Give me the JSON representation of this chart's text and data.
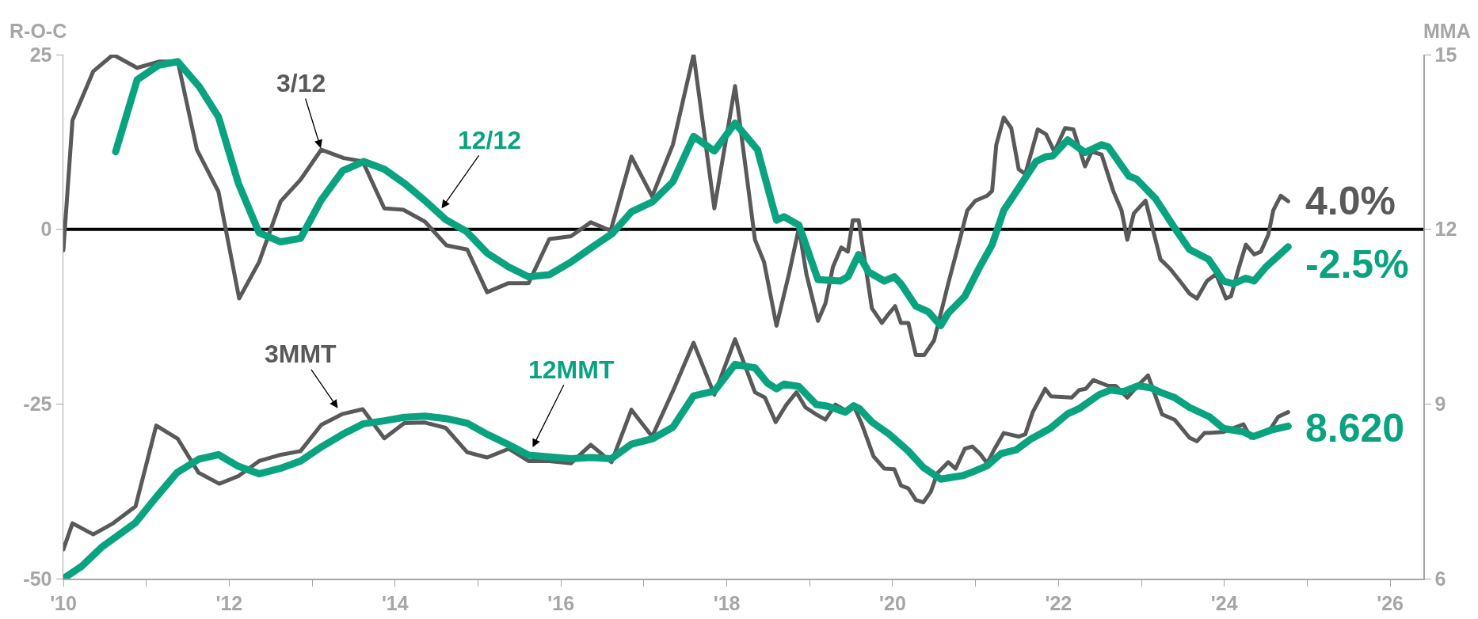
{
  "chart_data": {
    "type": "line",
    "ylabel": "R-O-C",
    "y2label": "MMA",
    "xlim": [
      2010,
      2026.4
    ],
    "xticks": [
      {
        "value": 2010,
        "label": "'10"
      },
      {
        "value": 2011,
        "label": null
      },
      {
        "value": 2012,
        "label": "'12"
      },
      {
        "value": 2013,
        "label": null
      },
      {
        "value": 2014,
        "label": "'14"
      },
      {
        "value": 2015,
        "label": null
      },
      {
        "value": 2016,
        "label": "'16"
      },
      {
        "value": 2017,
        "label": null
      },
      {
        "value": 2018,
        "label": "'18"
      },
      {
        "value": 2019,
        "label": null
      },
      {
        "value": 2020,
        "label": "'20"
      },
      {
        "value": 2021,
        "label": null
      },
      {
        "value": 2022,
        "label": "'22"
      },
      {
        "value": 2023,
        "label": null
      },
      {
        "value": 2024,
        "label": "'24"
      },
      {
        "value": 2025,
        "label": null
      },
      {
        "value": 2026,
        "label": "'26"
      }
    ],
    "ylim": [
      -50,
      25
    ],
    "yticks": [
      -50,
      -25,
      0,
      25
    ],
    "y2lim": [
      6,
      15
    ],
    "y2ticks": [
      6,
      9,
      12,
      15
    ],
    "grid": false,
    "marker": "none",
    "line_style": "solid",
    "ref_lines": [
      {
        "axis": "y",
        "value": 0,
        "label": null,
        "color": "#000000"
      }
    ],
    "series": [
      {
        "color": "#595959",
        "axis": "y",
        "x": [
          2010.0,
          2010.11,
          2010.36,
          2010.6,
          2010.89,
          2011.15,
          2011.38,
          2011.61,
          2011.87,
          2012.12,
          2012.36,
          2012.62,
          2012.86,
          2013.11,
          2013.38,
          2013.61,
          2013.87,
          2014.1,
          2014.36,
          2014.62,
          2014.87,
          2015.11,
          2015.37,
          2015.61,
          2015.86,
          2016.12,
          2016.36,
          2016.6,
          2016.85,
          2017.1,
          2017.35,
          2017.6,
          2017.85,
          2018.1,
          2018.34,
          2018.45,
          2018.6,
          2018.75,
          2018.87,
          2018.96,
          2019.1,
          2019.19,
          2019.28,
          2019.38,
          2019.46,
          2019.52,
          2019.59,
          2019.75,
          2019.87,
          2019.96,
          2020.03,
          2020.1,
          2020.19,
          2020.28,
          2020.38,
          2020.5,
          2020.67,
          2020.81,
          2020.9,
          2021.0,
          2021.14,
          2021.2,
          2021.25,
          2021.34,
          2021.43,
          2021.52,
          2021.6,
          2021.75,
          2021.85,
          2021.95,
          2022.08,
          2022.18,
          2022.32,
          2022.4,
          2022.52,
          2022.66,
          2022.76,
          2022.83,
          2022.91,
          2023.05,
          2023.23,
          2023.35,
          2023.49,
          2023.58,
          2023.67,
          2023.79,
          2023.9,
          2024.02,
          2024.08,
          2024.17,
          2024.26,
          2024.36,
          2024.44,
          2024.53,
          2024.59,
          2024.68,
          2024.77
        ],
        "values": [
          -3,
          15.6,
          22.6,
          25,
          23.1,
          24,
          24,
          11.4,
          5.4,
          -9.9,
          -4.7,
          4,
          7.1,
          11.4,
          10.2,
          9.7,
          3,
          2.8,
          1.1,
          -2.3,
          -2.9,
          -9,
          -7.7,
          -7.7,
          -1.4,
          -1,
          1,
          -0.2,
          10.4,
          4.7,
          12.1,
          25,
          3,
          20.5,
          -1.5,
          -4.7,
          -13.8,
          -6.4,
          0.2,
          -6.4,
          -13.1,
          -10.6,
          -5.4,
          -2.6,
          -3.2,
          1.3,
          1.3,
          -11.3,
          -13.4,
          -12,
          -11,
          -13.4,
          -13.4,
          -18,
          -18,
          -15.9,
          -7.8,
          -1.5,
          2.7,
          4.1,
          4.8,
          5.5,
          12.1,
          16,
          14.5,
          8.6,
          7.9,
          14.3,
          13.6,
          11.1,
          14.5,
          14.3,
          9,
          11.1,
          10.7,
          5.5,
          2.7,
          -1.5,
          2.3,
          4.1,
          -4.3,
          -5.7,
          -7.8,
          -9.2,
          -9.9,
          -7.4,
          -6.4,
          -9.9,
          -9.6,
          -5.7,
          -2.2,
          -3.6,
          -3.2,
          -0.8,
          2.7,
          4.8,
          4.0
        ]
      },
      {
        "color": "#0aa37f",
        "axis": "y",
        "x": [
          2010.63,
          2010.89,
          2011.15,
          2011.38,
          2011.64,
          2011.87,
          2012.11,
          2012.36,
          2012.62,
          2012.86,
          2013.11,
          2013.37,
          2013.62,
          2013.87,
          2014.12,
          2014.36,
          2014.61,
          2014.86,
          2015.11,
          2015.37,
          2015.61,
          2015.86,
          2016.12,
          2016.36,
          2016.62,
          2016.85,
          2017.1,
          2017.35,
          2017.6,
          2017.85,
          2018.1,
          2018.37,
          2018.6,
          2018.69,
          2018.87,
          2019.1,
          2019.37,
          2019.46,
          2019.59,
          2019.71,
          2019.9,
          2020.02,
          2020.1,
          2020.28,
          2020.43,
          2020.58,
          2020.67,
          2020.87,
          2021.05,
          2021.2,
          2021.34,
          2021.52,
          2021.73,
          2021.85,
          2021.93,
          2022.11,
          2022.32,
          2022.52,
          2022.6,
          2022.85,
          2022.94,
          2023.17,
          2023.4,
          2023.58,
          2023.81,
          2023.99,
          2024.11,
          2024.26,
          2024.36,
          2024.5,
          2024.77
        ],
        "values": [
          11.1,
          21.4,
          23.5,
          24,
          20.4,
          16.1,
          6.6,
          -0.5,
          -1.8,
          -1.3,
          4.2,
          8.4,
          9.7,
          8.6,
          6.5,
          4.1,
          1.4,
          -0.3,
          -3.4,
          -5.4,
          -6.8,
          -6.5,
          -4.7,
          -2.7,
          -0.6,
          2.5,
          3.9,
          6.8,
          13.3,
          11.2,
          15.2,
          11.4,
          1.3,
          1.8,
          0.6,
          -7.2,
          -7.4,
          -6.8,
          -3.6,
          -6.1,
          -7.4,
          -6.8,
          -7.8,
          -11,
          -11.8,
          -13.8,
          -12,
          -9.6,
          -5.4,
          -2.2,
          2.7,
          5.9,
          9.7,
          10.4,
          10.5,
          12.8,
          11,
          12.1,
          11.8,
          7.6,
          7.2,
          4.4,
          0.2,
          -2.9,
          -4.3,
          -7.4,
          -7.8,
          -7,
          -7.4,
          -5.4,
          -2.5
        ]
      },
      {
        "color": "#595959",
        "axis": "y2",
        "x": [
          2010.0,
          2010.11,
          2010.36,
          2010.6,
          2010.87,
          2011.12,
          2011.38,
          2011.63,
          2011.88,
          2012.11,
          2012.36,
          2012.6,
          2012.86,
          2013.11,
          2013.37,
          2013.61,
          2013.87,
          2014.11,
          2014.36,
          2014.61,
          2014.87,
          2015.11,
          2015.37,
          2015.61,
          2015.86,
          2016.12,
          2016.36,
          2016.61,
          2016.85,
          2017.1,
          2017.35,
          2017.6,
          2017.85,
          2018.1,
          2018.34,
          2018.46,
          2018.59,
          2018.72,
          2018.84,
          2018.95,
          2019.08,
          2019.19,
          2019.31,
          2019.43,
          2019.54,
          2019.63,
          2019.77,
          2019.9,
          2020.02,
          2020.1,
          2020.19,
          2020.28,
          2020.37,
          2020.46,
          2020.54,
          2020.67,
          2020.76,
          2020.87,
          2020.96,
          2021.05,
          2021.14,
          2021.23,
          2021.34,
          2021.52,
          2021.6,
          2021.69,
          2021.84,
          2021.91,
          2022.16,
          2022.25,
          2022.33,
          2022.42,
          2022.6,
          2022.69,
          2022.83,
          2022.96,
          2023.08,
          2023.25,
          2023.4,
          2023.58,
          2023.67,
          2023.76,
          2023.99,
          2024.23,
          2024.32,
          2024.56,
          2024.65,
          2024.77
        ],
        "values": [
          6.5,
          6.95,
          6.76,
          6.95,
          7.24,
          8.63,
          8.4,
          7.82,
          7.63,
          7.76,
          8.02,
          8.12,
          8.19,
          8.64,
          8.83,
          8.91,
          8.41,
          8.67,
          8.68,
          8.59,
          8.17,
          8.08,
          8.23,
          8.02,
          8.02,
          7.98,
          8.3,
          8,
          8.9,
          8.44,
          9.22,
          10.05,
          9.16,
          10.11,
          9.2,
          9.11,
          8.69,
          8.99,
          9.2,
          8.94,
          8.82,
          8.73,
          8.99,
          8.89,
          8.94,
          8.65,
          8.1,
          7.89,
          7.88,
          7.6,
          7.55,
          7.35,
          7.31,
          7.49,
          7.81,
          8,
          7.89,
          8.23,
          8.27,
          8.15,
          7.98,
          8.23,
          8.5,
          8.44,
          8.48,
          8.86,
          9.26,
          9.13,
          9.11,
          9.24,
          9.26,
          9.41,
          9.31,
          9.31,
          9.11,
          9.32,
          9.49,
          8.82,
          8.73,
          8.42,
          8.36,
          8.5,
          8.52,
          8.65,
          8.42,
          8.58,
          8.78,
          8.86
        ]
      },
      {
        "color": "#0aa37f",
        "axis": "y2",
        "x": [
          2010.0,
          2010.22,
          2010.47,
          2010.87,
          2011.12,
          2011.37,
          2011.63,
          2011.87,
          2012.11,
          2012.36,
          2012.61,
          2012.86,
          2013.12,
          2013.37,
          2013.62,
          2013.87,
          2014.11,
          2014.36,
          2014.61,
          2014.87,
          2015.11,
          2015.37,
          2015.61,
          2015.86,
          2016.12,
          2016.36,
          2016.61,
          2016.85,
          2017.1,
          2017.35,
          2017.6,
          2017.85,
          2018.1,
          2018.34,
          2018.49,
          2018.6,
          2018.69,
          2018.87,
          2019.08,
          2019.22,
          2019.43,
          2019.53,
          2019.6,
          2019.75,
          2019.96,
          2020.19,
          2020.37,
          2020.58,
          2020.85,
          2020.96,
          2021.14,
          2021.31,
          2021.49,
          2021.67,
          2021.9,
          2022.11,
          2022.25,
          2022.49,
          2022.63,
          2022.78,
          2022.96,
          2023.11,
          2023.23,
          2023.4,
          2023.58,
          2023.82,
          2023.99,
          2024.23,
          2024.35,
          2024.56,
          2024.77
        ],
        "values": [
          6,
          6.21,
          6.55,
          6.96,
          7.4,
          7.82,
          8.05,
          8.13,
          7.93,
          7.8,
          7.89,
          8.02,
          8.27,
          8.48,
          8.66,
          8.71,
          8.77,
          8.79,
          8.75,
          8.67,
          8.48,
          8.3,
          8.12,
          8.09,
          8.06,
          8.08,
          8.06,
          8.31,
          8.4,
          8.6,
          9.14,
          9.22,
          9.68,
          9.62,
          9.36,
          9.26,
          9.34,
          9.3,
          8.99,
          8.96,
          8.86,
          8.97,
          8.92,
          8.69,
          8.48,
          8.19,
          7.91,
          7.71,
          7.77,
          7.83,
          7.94,
          8.15,
          8.21,
          8.4,
          8.58,
          8.83,
          8.92,
          9.16,
          9.24,
          9.21,
          9.31,
          9.28,
          9.2,
          9.11,
          8.94,
          8.78,
          8.58,
          8.52,
          8.44,
          8.55,
          8.62
        ]
      }
    ],
    "annotations": [
      {
        "text": "3/12",
        "x": 2013.11,
        "y": 11.4
      },
      {
        "text": "12/12",
        "x": 2014.55,
        "y": 2.8
      },
      {
        "text": "3MMT",
        "x": 2013.32,
        "y": -25.8
      },
      {
        "text": "12MMT",
        "x": 2015.65,
        "y": -31.4
      },
      {
        "text": "4.0%",
        "x": 2024.77,
        "y": 4.0
      },
      {
        "text": "-2.5%",
        "x": 2024.77,
        "y": -2.5
      },
      {
        "text": "8.620",
        "x": 2024.77,
        "y": -28.2
      }
    ]
  }
}
